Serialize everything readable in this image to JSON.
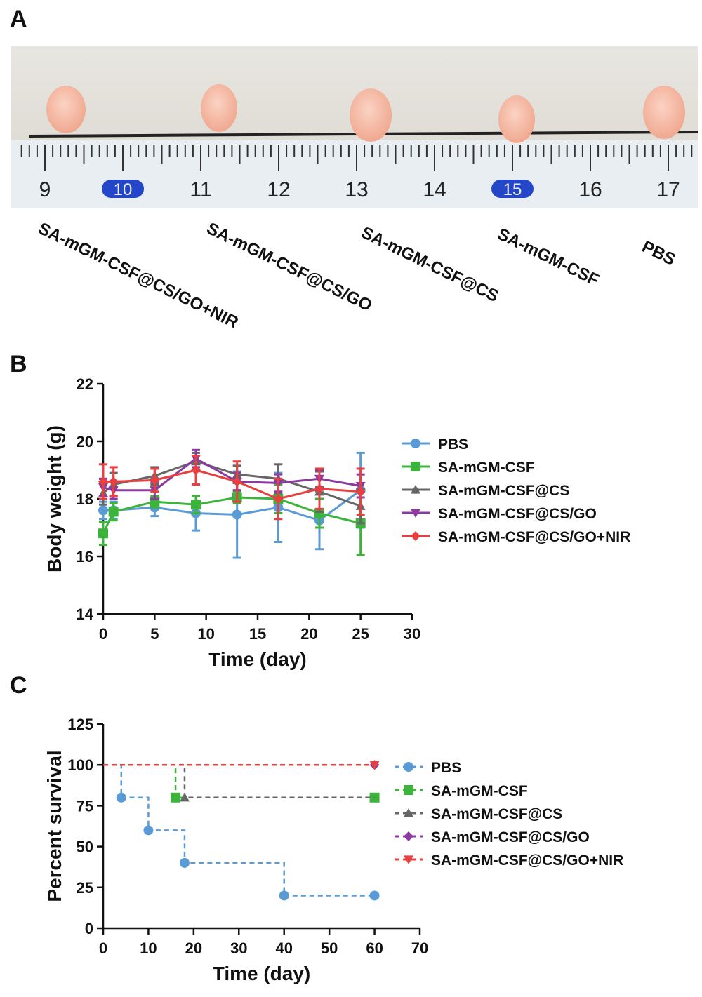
{
  "panels": {
    "a": "A",
    "b": "B",
    "c": "C"
  },
  "photo": {
    "ruler_numbers": [
      "9",
      "10",
      "11",
      "12",
      "13",
      "14",
      "15",
      "16",
      "17"
    ],
    "group_labels": [
      "SA-mGM-CSF@CS/GO+NIR",
      "SA-mGM-CSF@CS/GO",
      "SA-mGM-CSF@CS",
      "SA-mGM-CSF",
      "PBS"
    ]
  },
  "chart_data": [
    {
      "type": "line",
      "title": "",
      "xlabel": "Time (day)",
      "ylabel": "Body weight (g)",
      "xlim": [
        0,
        30
      ],
      "ylim": [
        14,
        22
      ],
      "xticks": [
        "0",
        "5",
        "10",
        "15",
        "20",
        "25",
        "30"
      ],
      "yticks": [
        "14",
        "16",
        "18",
        "20",
        "22"
      ],
      "x": [
        0,
        1,
        5,
        9,
        13,
        17,
        21,
        25
      ],
      "series": [
        {
          "name": "PBS",
          "color": "#5b9bd5",
          "marker": "circle",
          "values": [
            17.6,
            17.6,
            17.7,
            17.5,
            17.45,
            17.7,
            17.25,
            18.3
          ],
          "errors": [
            0.3,
            0.3,
            0.3,
            0.6,
            1.5,
            1.2,
            1.0,
            1.3
          ]
        },
        {
          "name": "SA-mGM-CSF",
          "color": "#3cb43c",
          "marker": "square",
          "values": [
            16.8,
            17.55,
            17.9,
            17.8,
            18.05,
            18.0,
            17.5,
            17.15
          ],
          "errors": [
            0.4,
            0.3,
            0.2,
            0.3,
            0.2,
            0.5,
            0.5,
            1.1
          ]
        },
        {
          "name": "SA-mGM-CSF@CS",
          "color": "#666666",
          "marker": "triangle-up",
          "values": [
            18.2,
            18.5,
            18.8,
            19.3,
            18.85,
            18.7,
            18.25,
            17.75
          ],
          "errors": [
            0.4,
            0.4,
            0.3,
            0.3,
            0.3,
            0.5,
            0.7,
            0.6
          ]
        },
        {
          "name": "SA-mGM-CSF@CS/GO",
          "color": "#8a3aa0",
          "marker": "triangle-down",
          "values": [
            18.4,
            18.3,
            18.3,
            19.4,
            18.6,
            18.55,
            18.7,
            18.45
          ],
          "errors": [
            0.3,
            0.3,
            0.3,
            0.3,
            0.3,
            0.3,
            0.3,
            0.4
          ]
        },
        {
          "name": "SA-mGM-CSF@CS/GO+NIR",
          "color": "#e84040",
          "marker": "diamond",
          "values": [
            18.6,
            18.6,
            18.65,
            19.0,
            18.6,
            18.0,
            18.35,
            18.25
          ],
          "errors": [
            0.6,
            0.5,
            0.4,
            0.5,
            0.7,
            0.7,
            0.7,
            0.8
          ]
        }
      ]
    },
    {
      "type": "line",
      "title": "",
      "xlabel": "Time (day)",
      "ylabel": "Percent survival",
      "xlim": [
        0,
        70
      ],
      "ylim": [
        0,
        125
      ],
      "xticks": [
        "0",
        "10",
        "20",
        "30",
        "40",
        "50",
        "60",
        "70"
      ],
      "yticks": [
        "0",
        "25",
        "50",
        "75",
        "100",
        "125"
      ],
      "series": [
        {
          "name": "PBS",
          "color": "#5b9bd5",
          "marker": "circle",
          "steps": [
            [
              0,
              100
            ],
            [
              4,
              80
            ],
            [
              10,
              60
            ],
            [
              18,
              40
            ],
            [
              40,
              20
            ],
            [
              60,
              20
            ]
          ],
          "markers": [
            [
              4,
              80
            ],
            [
              10,
              60
            ],
            [
              18,
              40
            ],
            [
              40,
              20
            ],
            [
              60,
              20
            ]
          ]
        },
        {
          "name": "SA-mGM-CSF",
          "color": "#3cb43c",
          "marker": "square",
          "steps": [
            [
              0,
              100
            ],
            [
              16,
              80
            ],
            [
              60,
              80
            ]
          ],
          "markers": [
            [
              16,
              80
            ],
            [
              60,
              80
            ]
          ]
        },
        {
          "name": "SA-mGM-CSF@CS",
          "color": "#666666",
          "marker": "triangle-up",
          "steps": [
            [
              0,
              100
            ],
            [
              18,
              80
            ],
            [
              60,
              80
            ]
          ],
          "markers": [
            [
              18,
              80
            ]
          ]
        },
        {
          "name": "SA-mGM-CSF@CS/GO",
          "color": "#8a3aa0",
          "marker": "diamond",
          "steps": [
            [
              0,
              100
            ],
            [
              60,
              100
            ]
          ],
          "markers": [
            [
              60,
              100
            ]
          ]
        },
        {
          "name": "SA-mGM-CSF@CS/GO+NIR",
          "color": "#e84040",
          "marker": "triangle-down",
          "steps": [
            [
              0,
              100
            ],
            [
              60,
              100
            ]
          ],
          "markers": [
            [
              60,
              100
            ]
          ]
        }
      ]
    }
  ]
}
